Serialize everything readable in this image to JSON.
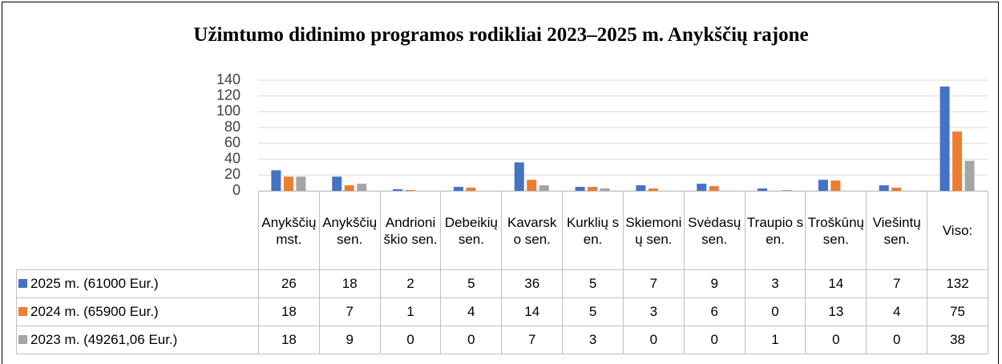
{
  "chart_data": {
    "type": "bar",
    "title": "Užimtumo didinimo programos rodikliai 2023–2025 m. Anykščių rajone",
    "categories": [
      "Anykščių mst.",
      "Anykščių sen.",
      "Andrioniškio sen.",
      "Debeikių sen.",
      "Kavarsko sen.",
      "Kurklių sen.",
      "Skiemonių sen.",
      "Svėdasų sen.",
      "Traupio sen.",
      "Troškūnų sen.",
      "Viešintų sen.",
      "Viso:"
    ],
    "series": [
      {
        "name": "2025 m. (61000 Eur.)",
        "color": "#4472c4",
        "values": [
          26,
          18,
          2,
          5,
          36,
          5,
          7,
          9,
          3,
          14,
          7,
          132
        ]
      },
      {
        "name": "2024 m. (65900 Eur.)",
        "color": "#ed7d31",
        "values": [
          18,
          7,
          1,
          4,
          14,
          5,
          3,
          6,
          0,
          13,
          4,
          75
        ]
      },
      {
        "name": "2023 m. (49261,06 Eur.)",
        "color": "#a5a5a5",
        "values": [
          18,
          9,
          0,
          0,
          7,
          3,
          0,
          0,
          1,
          0,
          0,
          38
        ]
      }
    ],
    "ylim": [
      0,
      140
    ],
    "yticks": [
      0,
      20,
      40,
      60,
      80,
      100,
      120,
      140
    ],
    "grid": true
  }
}
